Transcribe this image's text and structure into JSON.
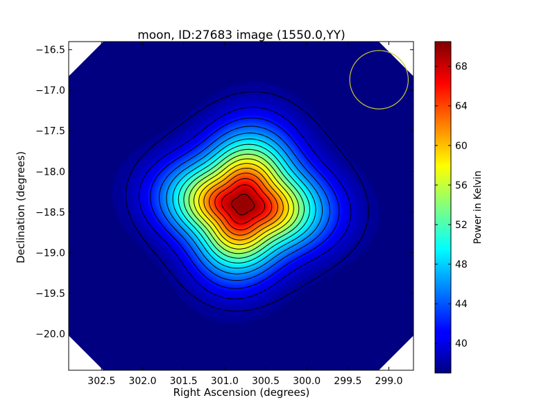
{
  "chart_data": {
    "type": "heatmap",
    "title": "moon, ID:27683 image (1550.0,YY)",
    "xlabel": "Right Ascension (degrees)",
    "ylabel": "Declination (degrees)",
    "xlim": [
      302.9,
      298.7
    ],
    "ylim": [
      -20.45,
      -16.4
    ],
    "x_ticks": [
      302.5,
      302.0,
      301.5,
      301.0,
      300.5,
      300.0,
      299.5,
      299.0
    ],
    "x_tick_labels": [
      "302.5",
      "302.0",
      "301.5",
      "301.0",
      "300.5",
      "300.0",
      "299.5",
      "299.0"
    ],
    "y_ticks": [
      -16.5,
      -17.0,
      -17.5,
      -18.0,
      -18.5,
      -19.0,
      -19.5,
      -20.0
    ],
    "y_tick_labels": [
      "−16.5",
      "−17.0",
      "−17.5",
      "−18.0",
      "−18.5",
      "−19.0",
      "−19.5",
      "−20.0"
    ],
    "colormap": "jet",
    "colorbar": {
      "label": "Power in Kelvin",
      "range": [
        37.0,
        70.5
      ],
      "ticks": [
        40,
        44,
        48,
        52,
        56,
        60,
        64,
        68
      ],
      "tick_labels": [
        "40",
        "44",
        "48",
        "52",
        "56",
        "60",
        "64",
        "68"
      ]
    },
    "peak": {
      "ra": 300.78,
      "dec": -18.41,
      "value": 70.5
    },
    "background_value": 37.0,
    "contour_levels": [
      38,
      40.2,
      42.2,
      44.3,
      46.4,
      48.5,
      50.6,
      52.7,
      54.8,
      56.9,
      59.0,
      61.1,
      63.2,
      65.3,
      67.4,
      69.6
    ],
    "contour_color": "#000000",
    "beam_circle": {
      "ra": 299.12,
      "dec": -16.87,
      "radius_deg": 0.36,
      "color": "#c8c832"
    },
    "masked_corner_color": "#ffffff"
  }
}
